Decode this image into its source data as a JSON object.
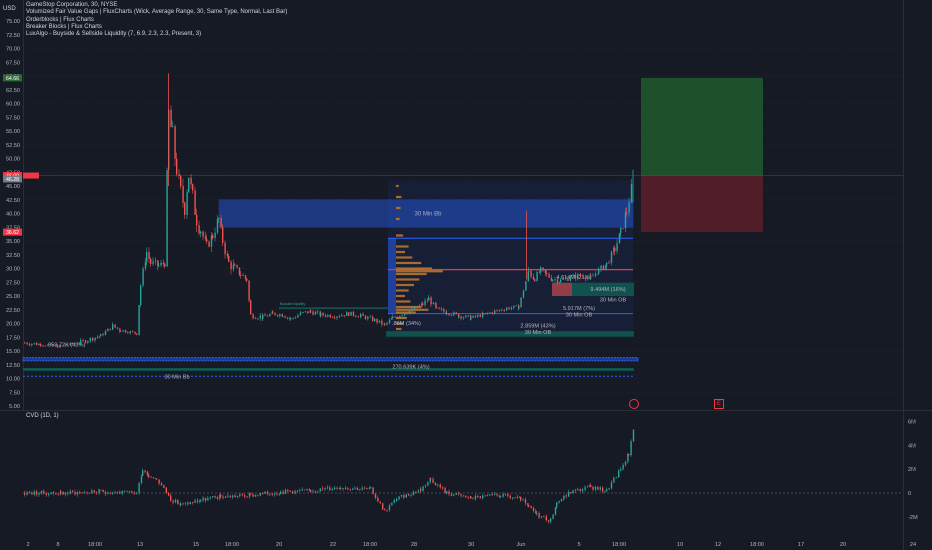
{
  "header": {
    "currency": "USD",
    "title": "GameStop Corporation, 30, NYSE",
    "indicators": [
      "Volumized Fair Value Gaps | FluxCharts (Wick, Average Range, 30, Same Type, Normal, Last Bar)",
      "Orderblocks | Flux Charts",
      "Breaker Blocks | Flux Charts",
      "LuxAlgo - Buyside & Sellside Liquidity (7, 6.9, 2.3, 2.3, Present, 3)"
    ]
  },
  "cvd_title": "CVD (1D, 1)",
  "price_axis": {
    "ticks": [
      "75.00",
      "72.50",
      "70.00",
      "67.50",
      "65.00",
      "62.50",
      "60.00",
      "57.50",
      "55.00",
      "52.50",
      "50.00",
      "47.50",
      "45.00",
      "42.50",
      "40.00",
      "37.50",
      "35.00",
      "32.50",
      "30.00",
      "27.50",
      "25.00",
      "22.50",
      "20.00",
      "17.50",
      "15.00",
      "12.50",
      "10.00",
      "7.50",
      "5.00"
    ],
    "badges": [
      {
        "text": "64.66",
        "value": 64.66,
        "color": "#2f6b3a"
      },
      {
        "text": "46.90",
        "value": 46.9,
        "color": "#f23645"
      },
      {
        "text": "46.28",
        "value": 46.28,
        "color": "#787b86"
      },
      {
        "text": "36.62",
        "value": 36.62,
        "color": "#f23645"
      }
    ]
  },
  "cvd_axis": {
    "ticks": [
      "6M",
      "4M",
      "2M",
      "0",
      "-2M"
    ]
  },
  "time_axis": {
    "labels": [
      "2",
      "8",
      "18:00",
      "13",
      "15",
      "18:00",
      "20",
      "22",
      "18:00",
      "28",
      "30",
      "Jun",
      "5",
      "18:00",
      "10",
      "12",
      "18:00",
      "17",
      "20",
      "24"
    ]
  },
  "annotations": {
    "fvg_main": "30 Min Bb",
    "fvg_bottom": "30 Min Bb",
    "ob1": "30 Min OB",
    "ob2": "30 Min OB",
    "ob3": "30 Min OB",
    "vol1": "4.614M (21%)",
    "vol2": "9.494M (16%)",
    "vol3": "5.917M (7%)",
    "vol4": "2.859M (43%)",
    "vol5": "270.639K (4%)",
    "vol6": "859.72K (43%)",
    "vol7": ".86M (34%)",
    "small_label": "Buyside liquidity"
  },
  "chart_data": {
    "type": "candlestick",
    "symbol": "GameStop Corporation",
    "interval": "30",
    "exchange": "NYSE",
    "price_range": [
      5,
      77
    ],
    "last_price": 46.9,
    "stop_level": 36.62,
    "target_level": 64.66,
    "cvd_range": [
      "-2M",
      "6M"
    ]
  },
  "colors": {
    "up": "#26a69a",
    "down": "#ef5350",
    "fvg": "#2962ff",
    "long": "#1e5a2d",
    "short": "#5a1f29",
    "ob": "#0f5f55",
    "accent": "#f23645"
  }
}
